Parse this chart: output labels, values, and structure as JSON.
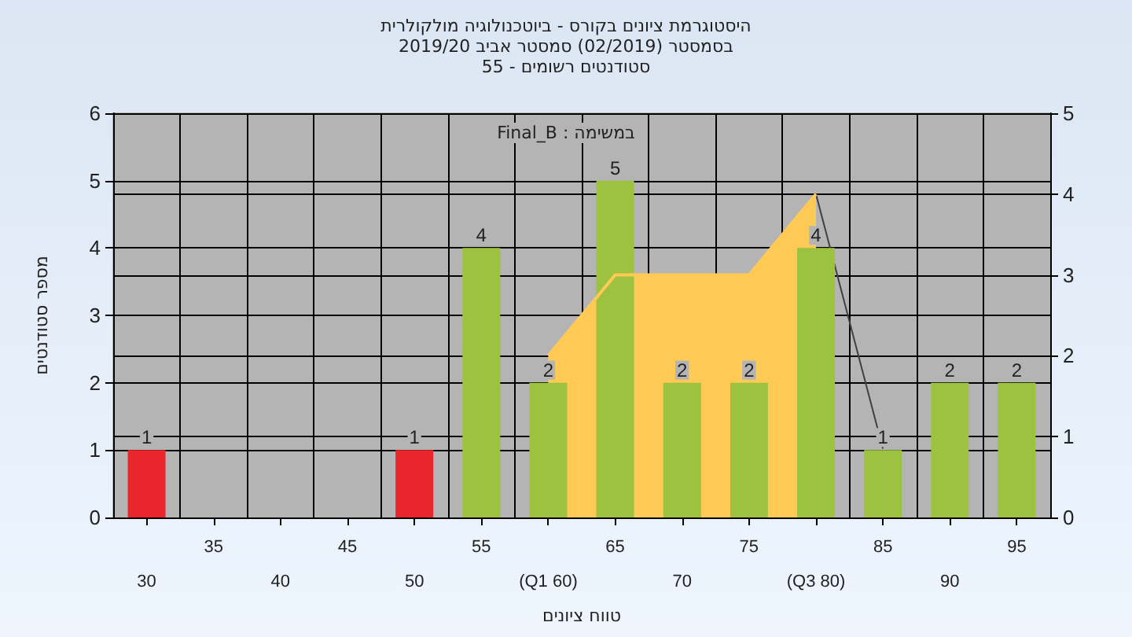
{
  "chart_data": {
    "type": "bar",
    "title": "היסטוגרמת ציונים בקורס - ביוטכנולוגיה מולקולרית",
    "subtitle": "בסמסטר  (02/2019)  סמסטר אביב 2019/20\nסטודנטים רשומים - 55",
    "annotations": [
      "במשימה : Final_B"
    ],
    "xlabel": "טווח ציונים",
    "ylabel": "מספר סטודנטים",
    "categories": [
      "30",
      "35",
      "40",
      "45",
      "50",
      "55",
      "(Q1 60)",
      "65",
      "70",
      "75",
      "(Q3 80)",
      "85",
      "90",
      "95"
    ],
    "series": [
      {
        "colors": [
          "#e8262b",
          "#e8262b",
          "#e8262b",
          "#e8262b",
          "#e8262b",
          "#9cc23f",
          "#9cc23f",
          "#9cc23f",
          "#9cc23f",
          "#9cc23f",
          "#9cc23f",
          "#9cc23f",
          "#9cc23f",
          "#9cc23f"
        ],
        "values": [
          1,
          0,
          0,
          0,
          1,
          4,
          2,
          5,
          2,
          2,
          4,
          1,
          2,
          2
        ],
        "value_labels": [
          "1",
          null,
          null,
          null,
          "1",
          "4",
          "2",
          "5",
          "2",
          "2",
          "4",
          "1",
          "2",
          "2"
        ]
      },
      {
        "type": "area",
        "axis": "y2",
        "color": "#ffc955",
        "values": [
          null,
          null,
          null,
          null,
          null,
          null,
          2,
          3,
          3,
          3,
          4,
          null,
          null,
          null
        ]
      },
      {
        "type": "line",
        "axis": "y2",
        "color": "#404040",
        "values": [
          null,
          null,
          null,
          null,
          null,
          null,
          null,
          null,
          null,
          null,
          4,
          0.85,
          null,
          null
        ]
      }
    ],
    "ylim": [
      0,
      6
    ],
    "yticks": [
      0,
      1,
      2,
      3,
      4,
      5,
      6
    ],
    "y2lim": [
      0,
      5
    ],
    "y2ticks": [
      0,
      1,
      2,
      3,
      4,
      5
    ],
    "grid": true
  }
}
